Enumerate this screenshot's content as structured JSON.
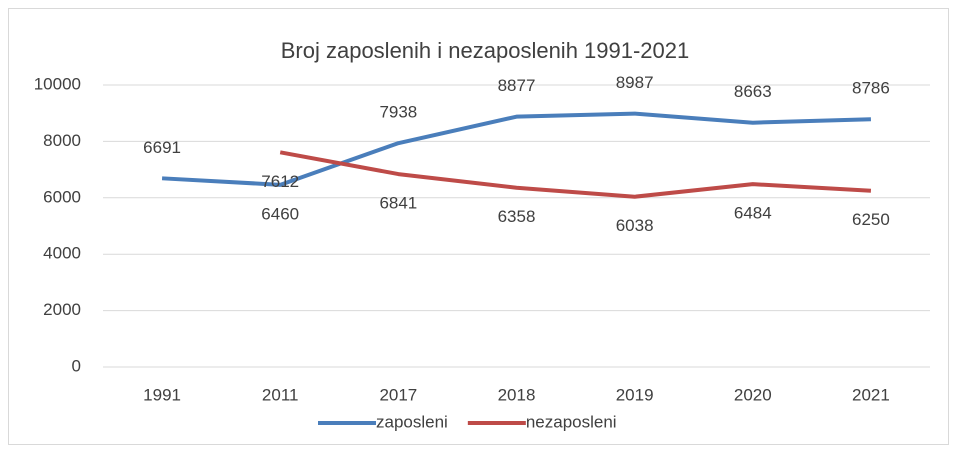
{
  "chart_data": {
    "type": "line",
    "title": "Broj zaposlenih i nezaposlenih 1991-2021",
    "categories": [
      "1991",
      "2011",
      "2017",
      "2018",
      "2019",
      "2020",
      "2021"
    ],
    "series": [
      {
        "name": "zaposleni",
        "color": "#4a7ebb",
        "values": [
          6691,
          6460,
          7938,
          8877,
          8987,
          8663,
          8786
        ]
      },
      {
        "name": "nezaposleni",
        "color": "#be4b48",
        "values": [
          null,
          7612,
          6841,
          6358,
          6038,
          6484,
          6250
        ]
      }
    ],
    "ylim": [
      0,
      10000
    ],
    "yticks": [
      0,
      2000,
      4000,
      6000,
      8000,
      10000
    ],
    "grid": true,
    "legend": "bottom"
  }
}
